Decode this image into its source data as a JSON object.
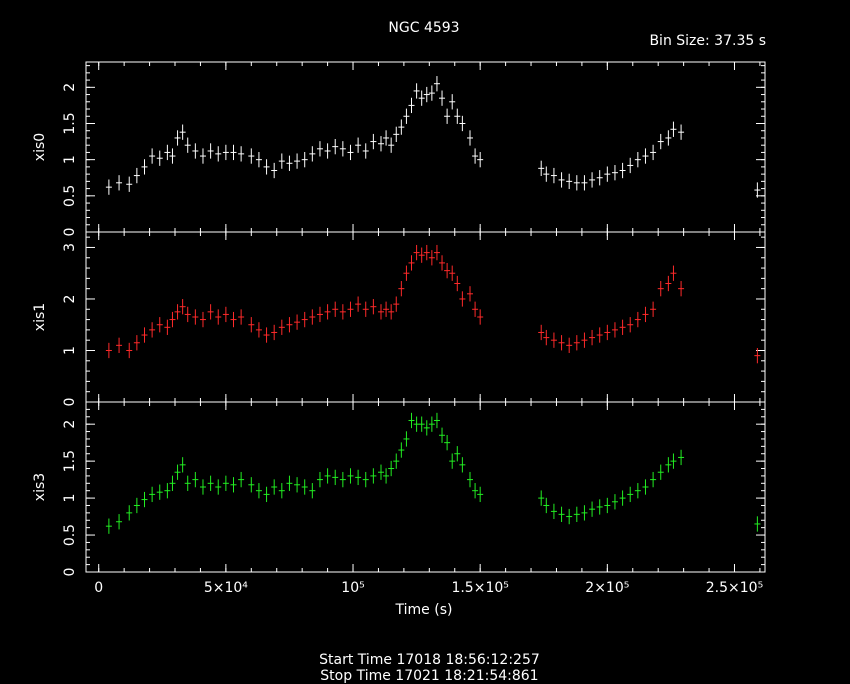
{
  "title": "NGC 4593",
  "bin_size_label": "Bin Size: 37.35 s",
  "start_time_label": "Start Time 17018 18:56:12:257",
  "stop_time_label": "Stop Time 17021 18:21:54:861",
  "chart_data": {
    "type": "scatter",
    "title": "NGC 4593",
    "xlabel": "Time (s)",
    "xlim": [
      -5000,
      262000
    ],
    "x_ticks": [
      0,
      50000,
      100000,
      150000,
      200000,
      250000
    ],
    "x_tick_labels": [
      "0",
      "5×10⁴",
      "10⁵",
      "1.5×10⁵",
      "2×10⁵",
      "2.5×10⁵"
    ],
    "colors": {
      "xis0": "#ffffff",
      "xis1": "#ff2a2a",
      "xis3": "#22ee22"
    },
    "series": [
      {
        "name": "xis0",
        "ylim": [
          0,
          2.35
        ],
        "y_ticks": [
          0,
          0.5,
          1,
          1.5,
          2
        ],
        "y_tick_labels": [
          "0",
          "0.5",
          "1",
          "1.5",
          "2"
        ],
        "points": [
          [
            4000,
            0.62
          ],
          [
            8000,
            0.68
          ],
          [
            12000,
            0.66
          ],
          [
            15000,
            0.78
          ],
          [
            18000,
            0.9
          ],
          [
            21000,
            1.05
          ],
          [
            24000,
            1.02
          ],
          [
            27000,
            1.1
          ],
          [
            29000,
            1.05
          ],
          [
            31000,
            1.3
          ],
          [
            33000,
            1.38
          ],
          [
            35000,
            1.2
          ],
          [
            38000,
            1.12
          ],
          [
            41000,
            1.05
          ],
          [
            44000,
            1.12
          ],
          [
            47000,
            1.08
          ],
          [
            50000,
            1.1
          ],
          [
            53000,
            1.1
          ],
          [
            56000,
            1.08
          ],
          [
            60000,
            1.05
          ],
          [
            63000,
            1.0
          ],
          [
            66000,
            0.9
          ],
          [
            69000,
            0.85
          ],
          [
            72000,
            0.98
          ],
          [
            75000,
            0.95
          ],
          [
            78000,
            0.98
          ],
          [
            81000,
            1.0
          ],
          [
            84000,
            1.08
          ],
          [
            87000,
            1.15
          ],
          [
            90000,
            1.12
          ],
          [
            93000,
            1.18
          ],
          [
            96000,
            1.15
          ],
          [
            99000,
            1.1
          ],
          [
            102000,
            1.2
          ],
          [
            105000,
            1.12
          ],
          [
            108000,
            1.25
          ],
          [
            111000,
            1.22
          ],
          [
            113000,
            1.3
          ],
          [
            115000,
            1.2
          ],
          [
            117000,
            1.35
          ],
          [
            119000,
            1.45
          ],
          [
            121000,
            1.6
          ],
          [
            123000,
            1.75
          ],
          [
            125000,
            1.95
          ],
          [
            127000,
            1.85
          ],
          [
            129000,
            1.9
          ],
          [
            131000,
            1.92
          ],
          [
            133000,
            2.05
          ],
          [
            135000,
            1.85
          ],
          [
            137000,
            1.6
          ],
          [
            139000,
            1.8
          ],
          [
            141000,
            1.6
          ],
          [
            143000,
            1.5
          ],
          [
            146000,
            1.3
          ],
          [
            148000,
            1.05
          ],
          [
            150000,
            1.0
          ],
          [
            174000,
            0.88
          ],
          [
            176000,
            0.8
          ],
          [
            179000,
            0.78
          ],
          [
            182000,
            0.72
          ],
          [
            185000,
            0.7
          ],
          [
            188000,
            0.68
          ],
          [
            191000,
            0.68
          ],
          [
            194000,
            0.72
          ],
          [
            197000,
            0.75
          ],
          [
            200000,
            0.8
          ],
          [
            203000,
            0.82
          ],
          [
            206000,
            0.85
          ],
          [
            209000,
            0.92
          ],
          [
            212000,
            1.0
          ],
          [
            215000,
            1.05
          ],
          [
            218000,
            1.1
          ],
          [
            221000,
            1.25
          ],
          [
            224000,
            1.3
          ],
          [
            226000,
            1.42
          ],
          [
            229000,
            1.38
          ],
          [
            259000,
            0.58
          ]
        ]
      },
      {
        "name": "xis1",
        "ylim": [
          0,
          3.3
        ],
        "y_ticks": [
          0,
          1,
          2,
          3
        ],
        "y_tick_labels": [
          "0",
          "1",
          "2",
          "3"
        ],
        "points": [
          [
            4000,
            1.0
          ],
          [
            8000,
            1.1
          ],
          [
            12000,
            1.0
          ],
          [
            15000,
            1.15
          ],
          [
            18000,
            1.3
          ],
          [
            21000,
            1.4
          ],
          [
            24000,
            1.5
          ],
          [
            27000,
            1.45
          ],
          [
            29000,
            1.6
          ],
          [
            31000,
            1.75
          ],
          [
            33000,
            1.85
          ],
          [
            35000,
            1.7
          ],
          [
            38000,
            1.65
          ],
          [
            41000,
            1.6
          ],
          [
            44000,
            1.75
          ],
          [
            47000,
            1.65
          ],
          [
            50000,
            1.7
          ],
          [
            53000,
            1.6
          ],
          [
            56000,
            1.65
          ],
          [
            60000,
            1.5
          ],
          [
            63000,
            1.4
          ],
          [
            66000,
            1.3
          ],
          [
            69000,
            1.35
          ],
          [
            72000,
            1.45
          ],
          [
            75000,
            1.5
          ],
          [
            78000,
            1.55
          ],
          [
            81000,
            1.6
          ],
          [
            84000,
            1.65
          ],
          [
            87000,
            1.7
          ],
          [
            90000,
            1.75
          ],
          [
            93000,
            1.8
          ],
          [
            96000,
            1.75
          ],
          [
            99000,
            1.8
          ],
          [
            102000,
            1.9
          ],
          [
            105000,
            1.8
          ],
          [
            108000,
            1.85
          ],
          [
            111000,
            1.75
          ],
          [
            113000,
            1.8
          ],
          [
            115000,
            1.75
          ],
          [
            117000,
            1.9
          ],
          [
            119000,
            2.2
          ],
          [
            121000,
            2.5
          ],
          [
            123000,
            2.7
          ],
          [
            125000,
            2.9
          ],
          [
            127000,
            2.85
          ],
          [
            129000,
            2.9
          ],
          [
            131000,
            2.8
          ],
          [
            133000,
            2.9
          ],
          [
            135000,
            2.7
          ],
          [
            137000,
            2.55
          ],
          [
            139000,
            2.5
          ],
          [
            141000,
            2.3
          ],
          [
            143000,
            2.0
          ],
          [
            146000,
            2.1
          ],
          [
            148000,
            1.8
          ],
          [
            150000,
            1.65
          ],
          [
            174000,
            1.35
          ],
          [
            176000,
            1.25
          ],
          [
            179000,
            1.2
          ],
          [
            182000,
            1.15
          ],
          [
            185000,
            1.1
          ],
          [
            188000,
            1.15
          ],
          [
            191000,
            1.2
          ],
          [
            194000,
            1.25
          ],
          [
            197000,
            1.3
          ],
          [
            200000,
            1.35
          ],
          [
            203000,
            1.4
          ],
          [
            206000,
            1.45
          ],
          [
            209000,
            1.5
          ],
          [
            212000,
            1.6
          ],
          [
            215000,
            1.7
          ],
          [
            218000,
            1.8
          ],
          [
            221000,
            2.2
          ],
          [
            224000,
            2.3
          ],
          [
            226000,
            2.5
          ],
          [
            229000,
            2.2
          ],
          [
            259000,
            0.9
          ]
        ]
      },
      {
        "name": "xis3",
        "ylim": [
          0,
          2.3
        ],
        "y_ticks": [
          0,
          0.5,
          1,
          1.5,
          2
        ],
        "y_tick_labels": [
          "0",
          "0.5",
          "1",
          "1.5",
          "2"
        ],
        "points": [
          [
            4000,
            0.62
          ],
          [
            8000,
            0.68
          ],
          [
            12000,
            0.8
          ],
          [
            15000,
            0.9
          ],
          [
            18000,
            0.98
          ],
          [
            21000,
            1.05
          ],
          [
            24000,
            1.08
          ],
          [
            27000,
            1.1
          ],
          [
            29000,
            1.2
          ],
          [
            31000,
            1.35
          ],
          [
            33000,
            1.45
          ],
          [
            35000,
            1.2
          ],
          [
            38000,
            1.25
          ],
          [
            41000,
            1.15
          ],
          [
            44000,
            1.2
          ],
          [
            47000,
            1.15
          ],
          [
            50000,
            1.2
          ],
          [
            53000,
            1.18
          ],
          [
            56000,
            1.25
          ],
          [
            60000,
            1.18
          ],
          [
            63000,
            1.1
          ],
          [
            66000,
            1.05
          ],
          [
            69000,
            1.15
          ],
          [
            72000,
            1.1
          ],
          [
            75000,
            1.2
          ],
          [
            78000,
            1.18
          ],
          [
            81000,
            1.15
          ],
          [
            84000,
            1.1
          ],
          [
            87000,
            1.25
          ],
          [
            90000,
            1.3
          ],
          [
            93000,
            1.28
          ],
          [
            96000,
            1.25
          ],
          [
            99000,
            1.3
          ],
          [
            102000,
            1.28
          ],
          [
            105000,
            1.25
          ],
          [
            108000,
            1.3
          ],
          [
            111000,
            1.35
          ],
          [
            113000,
            1.3
          ],
          [
            115000,
            1.4
          ],
          [
            117000,
            1.5
          ],
          [
            119000,
            1.65
          ],
          [
            121000,
            1.8
          ],
          [
            123000,
            2.05
          ],
          [
            125000,
            2.0
          ],
          [
            127000,
            2.0
          ],
          [
            129000,
            1.95
          ],
          [
            131000,
            2.0
          ],
          [
            133000,
            2.05
          ],
          [
            135000,
            1.85
          ],
          [
            137000,
            1.75
          ],
          [
            139000,
            1.5
          ],
          [
            141000,
            1.6
          ],
          [
            143000,
            1.45
          ],
          [
            146000,
            1.25
          ],
          [
            148000,
            1.1
          ],
          [
            150000,
            1.05
          ],
          [
            174000,
            1.0
          ],
          [
            176000,
            0.9
          ],
          [
            179000,
            0.82
          ],
          [
            182000,
            0.78
          ],
          [
            185000,
            0.75
          ],
          [
            188000,
            0.78
          ],
          [
            191000,
            0.8
          ],
          [
            194000,
            0.85
          ],
          [
            197000,
            0.88
          ],
          [
            200000,
            0.9
          ],
          [
            203000,
            0.95
          ],
          [
            206000,
            1.0
          ],
          [
            209000,
            1.05
          ],
          [
            212000,
            1.1
          ],
          [
            215000,
            1.15
          ],
          [
            218000,
            1.25
          ],
          [
            221000,
            1.35
          ],
          [
            224000,
            1.45
          ],
          [
            226000,
            1.5
          ],
          [
            229000,
            1.55
          ],
          [
            259000,
            0.65
          ]
        ]
      }
    ]
  }
}
